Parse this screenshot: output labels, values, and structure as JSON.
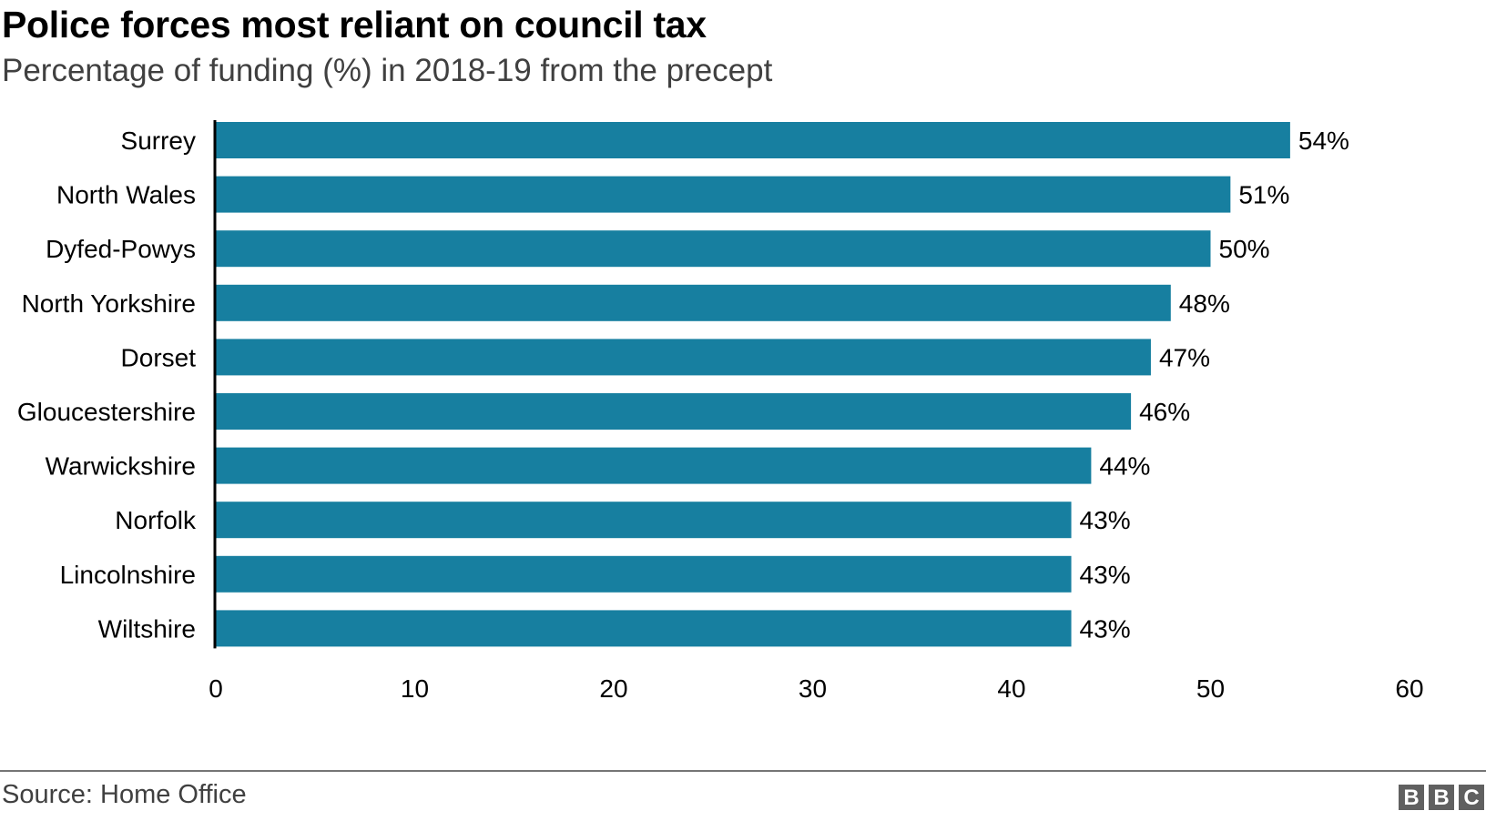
{
  "header": {
    "title": "Police forces most reliant on council tax",
    "subtitle": "Percentage of funding (%) in 2018-19 from the precept"
  },
  "footer": {
    "source": "Source: Home Office",
    "logo": [
      "B",
      "B",
      "C"
    ]
  },
  "chart_data": {
    "type": "bar",
    "orientation": "horizontal",
    "title": "Police forces most reliant on council tax",
    "subtitle": "Percentage of funding (%) in 2018-19 from the precept",
    "xlabel": "",
    "ylabel": "",
    "categories": [
      "Surrey",
      "North Wales",
      "Dyfed-Powys",
      "North Yorkshire",
      "Dorset",
      "Gloucestershire",
      "Warwickshire",
      "Norfolk",
      "Lincolnshire",
      "Wiltshire"
    ],
    "values": [
      54,
      51,
      50,
      48,
      47,
      46,
      44,
      43,
      43,
      43
    ],
    "data_labels": [
      "54%",
      "51%",
      "50%",
      "48%",
      "47%",
      "46%",
      "44%",
      "43%",
      "43%",
      "43%"
    ],
    "xlim": [
      0,
      60
    ],
    "xticks": [
      0,
      10,
      20,
      30,
      40,
      50,
      60
    ],
    "grid": false,
    "legend": "none",
    "bar_color": "#177fa0",
    "source": "Source: Home Office"
  }
}
